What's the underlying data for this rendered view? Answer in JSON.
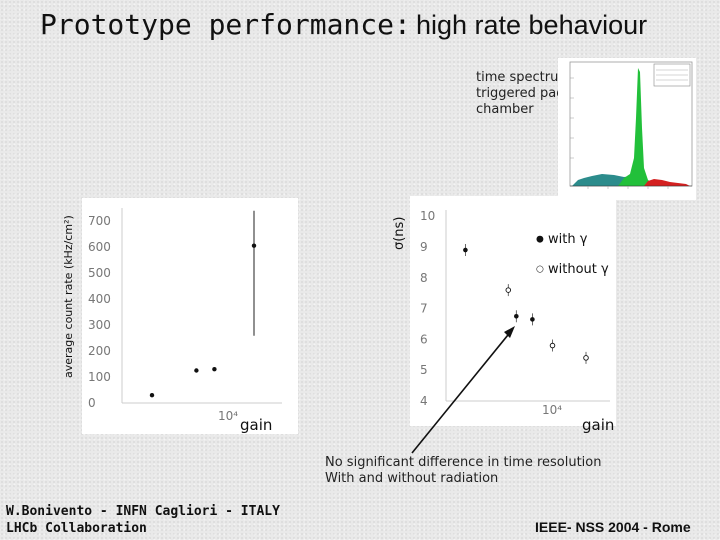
{
  "slide": {
    "title_part1": "Prototype performance:",
    "title_part2": "high rate behaviour",
    "inset_note": "time spectrum of first triggered pad of the chamber",
    "conclusion_line1": "No significant difference in time resolution",
    "conclusion_line2": "With and without radiation",
    "footer_left_line1": "W.Bonivento - INFN Cagliori - ITALY",
    "footer_left_line2": "LHCb Collaboration",
    "footer_right": "IEEE- NSS 2004 - Rome"
  },
  "chart_data": [
    {
      "type": "scatter",
      "ylabel": "average count rate (kHz/cm²)",
      "xlabel": "gain",
      "x_tick_label": "10⁴",
      "y_ticks": [
        0,
        100,
        200,
        300,
        400,
        500,
        600,
        700
      ],
      "ylim": [
        0,
        750
      ],
      "points": [
        {
          "x": 0.15,
          "y": 30
        },
        {
          "x": 0.52,
          "y": 125
        },
        {
          "x": 0.67,
          "y": 130
        },
        {
          "x": 1.0,
          "y": 605
        }
      ],
      "error_bars": [
        false,
        false,
        false,
        true
      ]
    },
    {
      "type": "scatter",
      "ylabel": "σ(ns)",
      "xlabel": "gain",
      "x_tick_label": "10⁴",
      "y_ticks": [
        4,
        5,
        6,
        7,
        8,
        9,
        10
      ],
      "ylim": [
        4,
        10.2
      ],
      "series": [
        {
          "name": "with γ",
          "marker": "filled",
          "points": [
            {
              "x": 0.1,
              "y": 8.9
            },
            {
              "x": 0.48,
              "y": 6.75
            },
            {
              "x": 0.6,
              "y": 6.65
            }
          ]
        },
        {
          "name": "without γ",
          "marker": "open",
          "points": [
            {
              "x": 0.42,
              "y": 7.6
            },
            {
              "x": 0.75,
              "y": 5.8
            },
            {
              "x": 1.0,
              "y": 5.4
            }
          ]
        }
      ]
    }
  ],
  "colors": {
    "background": "#e9e9e9",
    "histogram_green": "#22c03a",
    "histogram_red": "#d42020",
    "histogram_teal": "#2c8c8c"
  }
}
